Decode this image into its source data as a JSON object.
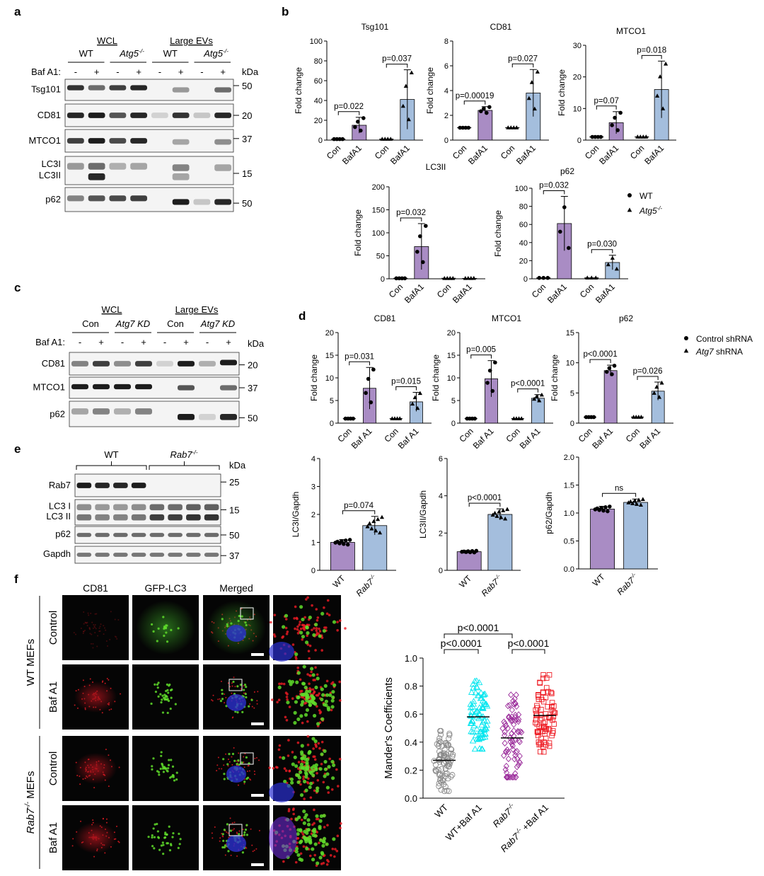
{
  "panel_letters": [
    "a",
    "b",
    "c",
    "d",
    "e",
    "f"
  ],
  "common": {
    "kda": "kDa",
    "baf": "Baf A1:",
    "minus": "-",
    "plus": "+",
    "fold_change": "Fold change",
    "con": "Con",
    "bafa1": "BafA1",
    "baf_a1": "Baf A1",
    "wt": "WT",
    "atg5": "Atg5",
    "rab7": "Rab7",
    "ko_sup": "-/-"
  },
  "blot_a": {
    "groups": [
      "WCL",
      "Large EVs"
    ],
    "genotypes": [
      "WT",
      "Atg5",
      "WT",
      "Atg5"
    ],
    "rows": [
      {
        "label": "Tsg101",
        "marker": "50"
      },
      {
        "label": "CD81",
        "marker": "20"
      },
      {
        "label": "MTCO1",
        "marker": "37"
      },
      {
        "label": "LC3I",
        "label2": "LC3II",
        "marker": "15"
      },
      {
        "label": "p62",
        "marker": "50"
      }
    ]
  },
  "blot_c": {
    "groups": [
      "WCL",
      "Large EVs"
    ],
    "conditions": [
      "Con",
      "Atg7 KD",
      "Con",
      "Atg7 KD"
    ],
    "rows": [
      {
        "label": "CD81",
        "marker": "20"
      },
      {
        "label": "MTCO1",
        "marker": "37"
      },
      {
        "label": "p62",
        "marker": "50"
      }
    ]
  },
  "blot_e": {
    "genotypes": [
      "WT",
      "Rab7"
    ],
    "rows": [
      {
        "label": "Rab7",
        "marker": "25"
      },
      {
        "label": "LC3 I",
        "label2": "LC3 II",
        "marker": "15"
      },
      {
        "label": "p62",
        "marker": "50"
      },
      {
        "label": "Gapdh",
        "marker": "37"
      }
    ]
  },
  "legend_b": {
    "items": [
      "WT",
      "Atg5"
    ]
  },
  "legend_d": {
    "items": [
      "Control shRNA",
      "Atg7 shRNA"
    ]
  },
  "panel_f": {
    "columns": [
      "CD81",
      "GFP-LC3",
      "Merged"
    ],
    "row_labels": [
      "Control",
      "Baf A1",
      "Control",
      "Baf A1"
    ],
    "group_labels": [
      "WT MEFs",
      "Rab7 MEFs"
    ]
  },
  "colors": {
    "purple": "#a98cc4",
    "blue": "#a4bedd",
    "cyan": "#00e5ee",
    "magenta": "#9a2a9a",
    "red": "#ee1c24",
    "gray": "#888888"
  },
  "chart_data": [
    {
      "id": "b-tsg101",
      "type": "bar",
      "title": "Tsg101",
      "ylabel": "Fold change",
      "ylim": [
        0,
        100
      ],
      "yticks": [
        0,
        20,
        40,
        60,
        80,
        100
      ],
      "categories": [
        "Con",
        "BafA1",
        "Con",
        "BafA1"
      ],
      "values": [
        1,
        15,
        1,
        41
      ],
      "errors": [
        0,
        8,
        0,
        30
      ],
      "p_values": [
        "p=0.022",
        "p=0.037"
      ]
    },
    {
      "id": "b-cd81",
      "type": "bar",
      "title": "CD81",
      "ylabel": "Fold change",
      "ylim": [
        0,
        8
      ],
      "yticks": [
        0,
        2,
        4,
        6,
        8
      ],
      "categories": [
        "Con",
        "BafA1",
        "Con",
        "BafA1"
      ],
      "values": [
        1,
        2.4,
        1,
        3.8
      ],
      "errors": [
        0,
        0.3,
        0,
        1.9
      ],
      "p_values": [
        "p=0.00019",
        "p=0.027"
      ]
    },
    {
      "id": "b-mtco1",
      "type": "bar",
      "title": "MTCO1",
      "ylabel": "Fold change",
      "ylim": [
        0,
        30
      ],
      "yticks": [
        0,
        10,
        20,
        30
      ],
      "categories": [
        "Con",
        "BafA1",
        "Con",
        "BafA1"
      ],
      "values": [
        1,
        5.5,
        1,
        16
      ],
      "errors": [
        0,
        3.5,
        0,
        9
      ],
      "p_values": [
        "p=0.07",
        "p=0.018"
      ]
    },
    {
      "id": "b-lc3ii",
      "type": "bar",
      "title": "LC3II",
      "ylabel": "Fold change",
      "ylim": [
        0,
        200
      ],
      "yticks": [
        0,
        50,
        100,
        150,
        200
      ],
      "categories": [
        "Con",
        "BafA1",
        "Con",
        "BafA1"
      ],
      "values": [
        1,
        70,
        1,
        1
      ],
      "errors": [
        0,
        50,
        0,
        0
      ],
      "p_values": [
        "p=0.032"
      ]
    },
    {
      "id": "b-p62",
      "type": "bar",
      "title": "p62",
      "ylabel": "Fold change",
      "ylim": [
        0,
        100
      ],
      "yticks": [
        0,
        20,
        40,
        60,
        80,
        100
      ],
      "categories": [
        "Con",
        "BafA1",
        "Con",
        "BafA1"
      ],
      "values": [
        1,
        61,
        1,
        18
      ],
      "errors": [
        0,
        30,
        0,
        8
      ],
      "p_values": [
        "p=0.032",
        "p=0.030"
      ]
    },
    {
      "id": "d-cd81",
      "type": "bar",
      "title": "CD81",
      "ylabel": "Fold change",
      "ylim": [
        0,
        20
      ],
      "yticks": [
        0,
        5,
        10,
        15,
        20
      ],
      "categories": [
        "Con",
        "Baf A1",
        "Con",
        "Baf A1"
      ],
      "values": [
        1,
        7.7,
        1,
        4.7
      ],
      "errors": [
        0,
        4.6,
        0,
        2.1
      ],
      "p_values": [
        "p=0.031",
        "p=0.015"
      ]
    },
    {
      "id": "d-mtco1",
      "type": "bar",
      "title": "MTCO1",
      "ylabel": "Fold change",
      "ylim": [
        0,
        20
      ],
      "yticks": [
        0,
        5,
        10,
        15,
        20
      ],
      "categories": [
        "Con",
        "Baf A1",
        "Con",
        "Baf A1"
      ],
      "values": [
        1,
        9.8,
        1,
        5.5
      ],
      "errors": [
        0,
        4,
        0,
        0.8
      ],
      "p_values": [
        "p=0.005",
        "p<0.0001"
      ]
    },
    {
      "id": "d-p62",
      "type": "bar",
      "title": "p62",
      "ylabel": "Fold change",
      "ylim": [
        0,
        15
      ],
      "yticks": [
        0,
        5,
        10,
        15
      ],
      "categories": [
        "Con",
        "Baf A1",
        "Con",
        "Baf A1"
      ],
      "values": [
        1,
        8.7,
        1,
        5.3
      ],
      "errors": [
        0,
        0.9,
        0,
        1.5
      ],
      "p_values": [
        "p<0.0001",
        "p=0.026"
      ]
    },
    {
      "id": "e-lc3i",
      "type": "bar",
      "ylabel": "LC3I/Gapdh",
      "ylim": [
        0,
        4
      ],
      "yticks": [
        0,
        1,
        2,
        3,
        4
      ],
      "categories": [
        "WT",
        "Rab7"
      ],
      "values": [
        1,
        1.6
      ],
      "errors": [
        0.1,
        0.33
      ],
      "p_values": [
        "p=0.074"
      ]
    },
    {
      "id": "e-lc3ii",
      "type": "bar",
      "ylabel": "LC3II/Gapdh",
      "ylim": [
        0,
        6
      ],
      "yticks": [
        0,
        2,
        4,
        6
      ],
      "categories": [
        "WT",
        "Rab7"
      ],
      "values": [
        1,
        3
      ],
      "errors": [
        0.05,
        0.3
      ],
      "p_values": [
        "p<0.0001"
      ]
    },
    {
      "id": "e-p62",
      "type": "bar",
      "ylabel": "p62/Gapdh",
      "ylim": [
        0,
        2
      ],
      "yticks": [
        0,
        0.5,
        1,
        1.5,
        2
      ],
      "categories": [
        "WT",
        "Rab7"
      ],
      "values": [
        1.07,
        1.19
      ],
      "errors": [
        0.05,
        0.06
      ],
      "p_values": [
        "ns"
      ]
    },
    {
      "id": "f-manders",
      "type": "scatter",
      "ylabel": "Mander's Coefficients",
      "ylim": [
        0,
        1
      ],
      "yticks": [
        0,
        0.2,
        0.4,
        0.6,
        0.8,
        1.0
      ],
      "categories": [
        "WT",
        "WT+Baf A1",
        "Rab7",
        "Rab7 +Baf A1"
      ],
      "means": [
        0.27,
        0.58,
        0.43,
        0.59
      ],
      "ranges": [
        [
          0.05,
          0.48
        ],
        [
          0.35,
          0.86
        ],
        [
          0.15,
          0.84
        ],
        [
          0.33,
          0.88
        ]
      ],
      "p_values": [
        "p<0.0001",
        "p<0.0001",
        "p<0.0001"
      ]
    }
  ]
}
